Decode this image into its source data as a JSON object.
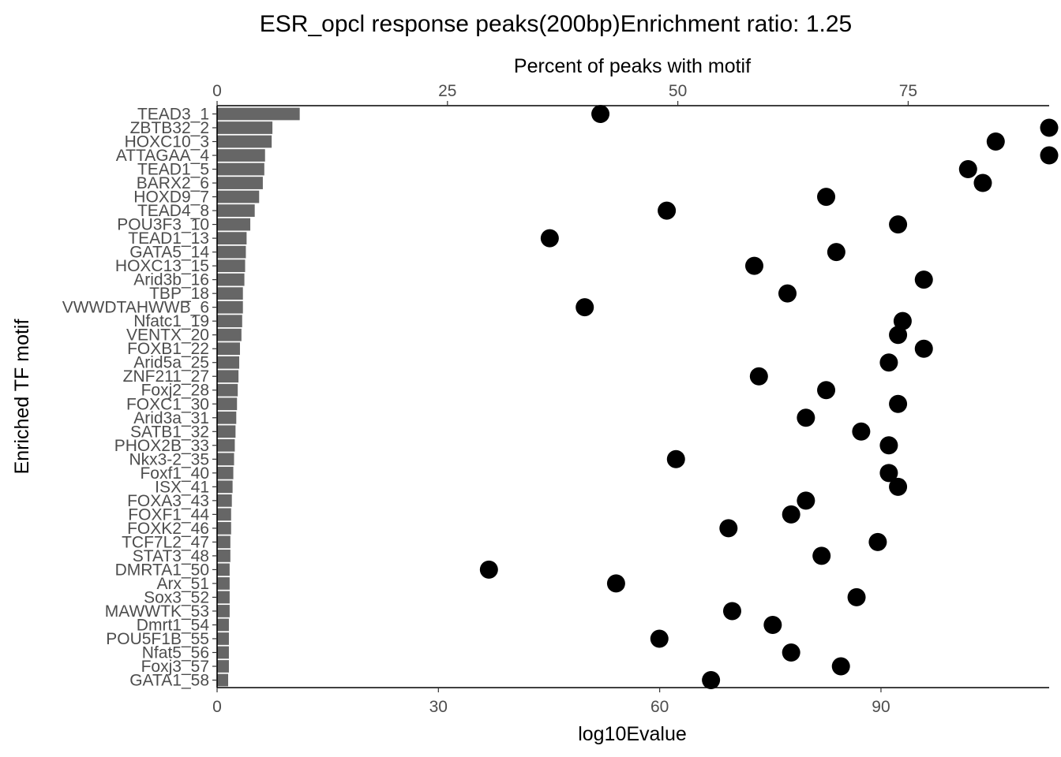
{
  "chart_data": {
    "type": "bar",
    "title": "ESR_opcl response peaks(200bp)Enrichment ratio: 1.25",
    "top_axis": {
      "label": "Percent of peaks with motif",
      "range": [
        0,
        90.3
      ],
      "ticks": [
        0,
        25,
        50,
        75
      ]
    },
    "bottom_axis": {
      "label": "log10Evalue",
      "range": [
        0,
        112.8
      ],
      "ticks": [
        0,
        30,
        60,
        90
      ]
    },
    "ylabel": "Enriched TF motif",
    "grid": false,
    "legend": "none",
    "colors": {
      "bar": "#666666",
      "point": "#000000",
      "axis": "#000000",
      "text": "#4d4d4d"
    },
    "categories": [
      "TEAD3_1",
      "ZBTB32_2",
      "HOXC10_3",
      "ATTAGAA_4",
      "TEAD1_5",
      "BARX2_6",
      "HOXD9_7",
      "TEAD4_8",
      "POU3F3_10",
      "TEAD1_13",
      "GATA5_14",
      "HOXC13_15",
      "Arid3b_16",
      "TBP_18",
      "VWWDTAHWWB_6",
      "Nfatc1_19",
      "VENTX_20",
      "FOXB1_22",
      "Arid5a_25",
      "ZNF211_27",
      "Foxj2_28",
      "FOXC1_30",
      "Arid3a_31",
      "SATB1_32",
      "PHOX2B_33",
      "Nkx3-2_35",
      "Foxf1_40",
      "ISX_41",
      "FOXA3_43",
      "FOXF1_44",
      "FOXK2_46",
      "TCF7L2_47",
      "STAT3_48",
      "DMRTA1_50",
      "Arx_51",
      "Sox3_52",
      "MAWWTK_53",
      "Dmrt1_54",
      "POU5F1B_55",
      "Nfat5_56",
      "Foxj3_57",
      "GATA1_58"
    ],
    "series": [
      {
        "name": "log10Evalue",
        "mark": "bar",
        "axis": "bottom",
        "values": [
          11.2,
          7.5,
          7.4,
          6.5,
          6.4,
          6.2,
          5.7,
          5.1,
          4.5,
          4.0,
          3.9,
          3.8,
          3.7,
          3.5,
          3.5,
          3.4,
          3.3,
          3.1,
          3.0,
          2.9,
          2.8,
          2.7,
          2.6,
          2.5,
          2.4,
          2.3,
          2.2,
          2.1,
          2.0,
          1.9,
          1.9,
          1.8,
          1.8,
          1.7,
          1.7,
          1.7,
          1.7,
          1.6,
          1.6,
          1.6,
          1.6,
          1.5
        ]
      },
      {
        "name": "Percent of peaks with motif",
        "mark": "point",
        "axis": "top",
        "values": [
          41.6,
          90.3,
          84.5,
          90.3,
          81.5,
          83.1,
          66.1,
          48.8,
          73.9,
          36.1,
          67.2,
          58.3,
          76.7,
          61.9,
          39.9,
          74.4,
          73.9,
          76.7,
          72.9,
          58.8,
          66.1,
          73.9,
          63.9,
          69.9,
          72.9,
          49.8,
          72.9,
          73.9,
          63.9,
          62.3,
          55.5,
          71.7,
          65.6,
          29.5,
          43.3,
          69.4,
          55.9,
          60.3,
          48.0,
          62.3,
          67.7,
          53.6
        ]
      }
    ]
  }
}
